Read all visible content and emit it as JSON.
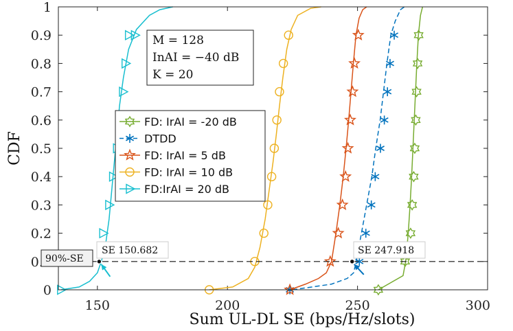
{
  "chart_data": {
    "type": "line",
    "xlabel": "Sum UL-DL SE (bps/Hz/slots)",
    "ylabel": "CDF",
    "xlim": [
      135,
      300
    ],
    "ylim": [
      0,
      1
    ],
    "xticks": [
      "150",
      "200",
      "250",
      "300"
    ],
    "yticks": [
      "0",
      "0.1",
      "0.2",
      "0.3",
      "0.4",
      "0.5",
      "0.6",
      "0.7",
      "0.8",
      "0.9",
      "1"
    ],
    "grid": false,
    "series": [
      {
        "name": "FD: IrAI = -20 dB",
        "color": "#77AC30",
        "dash": "solid",
        "marker": "hexagram",
        "x": [
          258.0,
          267.5,
          268.5,
          269.5,
          270.2,
          270.8,
          271.3,
          271.8,
          272.3,
          272.8,
          273.4,
          274.2,
          275.0
        ],
        "y": [
          0,
          0.05,
          0.1,
          0.2,
          0.3,
          0.4,
          0.5,
          0.6,
          0.7,
          0.8,
          0.9,
          0.97,
          1.0
        ],
        "mx": [
          258.0,
          268.3,
          270.4,
          271.0,
          271.6,
          272.0,
          272.4,
          272.7,
          273.1,
          273.5
        ],
        "my": [
          0,
          0.1,
          0.2,
          0.3,
          0.4,
          0.5,
          0.6,
          0.7,
          0.8,
          0.9
        ]
      },
      {
        "name": "DTDD",
        "color": "#0072BD",
        "dash": "dashed",
        "marker": "asterisk",
        "x": [
          225.0,
          240.0,
          246.0,
          248.5,
          249.5,
          251.5,
          253.5,
          255.5,
          257.0,
          258.7,
          260.0,
          261.3,
          262.8,
          264.5,
          266.5,
          268.0
        ],
        "y": [
          0,
          0.02,
          0.04,
          0.06,
          0.1,
          0.2,
          0.3,
          0.4,
          0.5,
          0.6,
          0.7,
          0.8,
          0.9,
          0.95,
          0.99,
          1.0
        ],
        "mx": [
          224.0,
          250.7,
          253.2,
          255.3,
          256.8,
          258.8,
          260.3,
          261.5,
          262.5,
          264.1
        ],
        "my": [
          0,
          0.1,
          0.2,
          0.3,
          0.4,
          0.5,
          0.6,
          0.7,
          0.8,
          0.9
        ]
      },
      {
        "name": "FD: IrAI = 5 dB",
        "color": "#D95319",
        "dash": "solid",
        "marker": "pentagram",
        "x": [
          224.0,
          230.0,
          235.0,
          238.0,
          240.0,
          241.7,
          243.2,
          244.5,
          245.6,
          246.6,
          247.5,
          248.4,
          249.4,
          250.6,
          252.0,
          253.5
        ],
        "y": [
          0,
          0.02,
          0.04,
          0.06,
          0.1,
          0.2,
          0.3,
          0.4,
          0.5,
          0.6,
          0.7,
          0.8,
          0.9,
          0.96,
          0.99,
          1.0
        ],
        "mx": [
          224.0,
          239.5,
          242.6,
          244.2,
          245.4,
          246.3,
          247.2,
          248.1,
          248.8,
          250.3
        ],
        "my": [
          0,
          0.1,
          0.2,
          0.3,
          0.4,
          0.5,
          0.6,
          0.7,
          0.8,
          0.9
        ]
      },
      {
        "name": "FD: IrAI = 10 dB",
        "color": "#EDB120",
        "dash": "solid",
        "marker": "circle",
        "x": [
          193.0,
          202.0,
          208.0,
          210.5,
          212.5,
          214.5,
          216.0,
          217.5,
          218.8,
          220.0,
          221.3,
          222.8,
          224.5,
          227.0,
          232.0,
          236.0
        ],
        "y": [
          0,
          0.01,
          0.04,
          0.08,
          0.15,
          0.25,
          0.35,
          0.45,
          0.55,
          0.65,
          0.75,
          0.85,
          0.92,
          0.97,
          0.995,
          1.0
        ],
        "mx": [
          193.0,
          210.5,
          214.0,
          215.5,
          217.0,
          218.0,
          219.0,
          220.0,
          221.5,
          223.5
        ],
        "my": [
          0,
          0.1,
          0.2,
          0.3,
          0.4,
          0.5,
          0.6,
          0.7,
          0.8,
          0.9
        ]
      },
      {
        "name": "FD:IrAI = 20 dB",
        "color": "#17BECF",
        "dash": "solid",
        "marker": "triangle-right",
        "x": [
          136.0,
          143.0,
          147.0,
          150.0,
          151.5,
          153.0,
          154.5,
          155.5,
          156.5,
          157.5,
          158.5,
          160.0,
          162.0,
          165.0,
          170.0,
          174.0,
          179.0
        ],
        "y": [
          0,
          0.01,
          0.03,
          0.06,
          0.1,
          0.15,
          0.25,
          0.35,
          0.45,
          0.55,
          0.65,
          0.75,
          0.85,
          0.92,
          0.97,
          0.99,
          1.0
        ],
        "mx": [
          136.0,
          152.2,
          154.5,
          156.0,
          157.5,
          158.7,
          159.8,
          160.8,
          162.1,
          164.4
        ],
        "my": [
          0,
          0.2,
          0.3,
          0.4,
          0.5,
          0.6,
          0.7,
          0.8,
          0.9,
          0.9
        ]
      }
    ],
    "reference_line": {
      "y": 0.1,
      "label": "90%-SE"
    },
    "annotations": [
      {
        "text": "SE 150.682",
        "x": 150.682,
        "y": 0.1,
        "color": "#17BECF"
      },
      {
        "text": "SE 247.918",
        "x": 247.918,
        "y": 0.1,
        "color": "#0072BD"
      }
    ],
    "param_box": [
      "M = 128",
      "InAI = −40 dB",
      "K = 20"
    ],
    "legend_position": "center-left"
  }
}
